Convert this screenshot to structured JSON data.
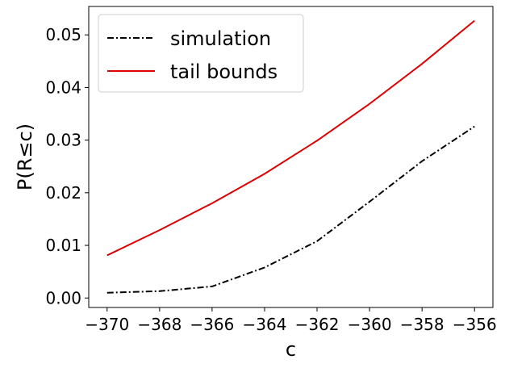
{
  "chart_data": {
    "type": "line",
    "xlabel": "c",
    "ylabel": "P(R≤c)",
    "xlim": [
      -370.7,
      -355.3
    ],
    "ylim": [
      -0.0018,
      0.0554
    ],
    "x_ticks": [
      -370,
      -368,
      -366,
      -364,
      -362,
      -360,
      -358,
      -356
    ],
    "x_tick_labels": [
      "−370",
      "−368",
      "−366",
      "−364",
      "−362",
      "−360",
      "−358",
      "−356"
    ],
    "y_ticks": [
      0.0,
      0.01,
      0.02,
      0.03,
      0.04,
      0.05
    ],
    "y_tick_labels": [
      "0.00",
      "0.01",
      "0.02",
      "0.03",
      "0.04",
      "0.05"
    ],
    "grid": false,
    "legend_position": "top-left",
    "series": [
      {
        "name": "simulation",
        "color": "#000000",
        "style": "dash-dot",
        "x": [
          -370,
          -368,
          -366,
          -364,
          -362,
          -360,
          -358,
          -356
        ],
        "y": [
          0.001,
          0.0013,
          0.0022,
          0.0058,
          0.0108,
          0.0183,
          0.026,
          0.0326
        ]
      },
      {
        "name": "tail bounds",
        "color": "#dd0000",
        "style": "solid",
        "x": [
          -370,
          -368,
          -366,
          -364,
          -362,
          -360,
          -358,
          -356
        ],
        "y": [
          0.0081,
          0.0129,
          0.018,
          0.0236,
          0.0299,
          0.0369,
          0.0445,
          0.0527
        ]
      }
    ]
  }
}
